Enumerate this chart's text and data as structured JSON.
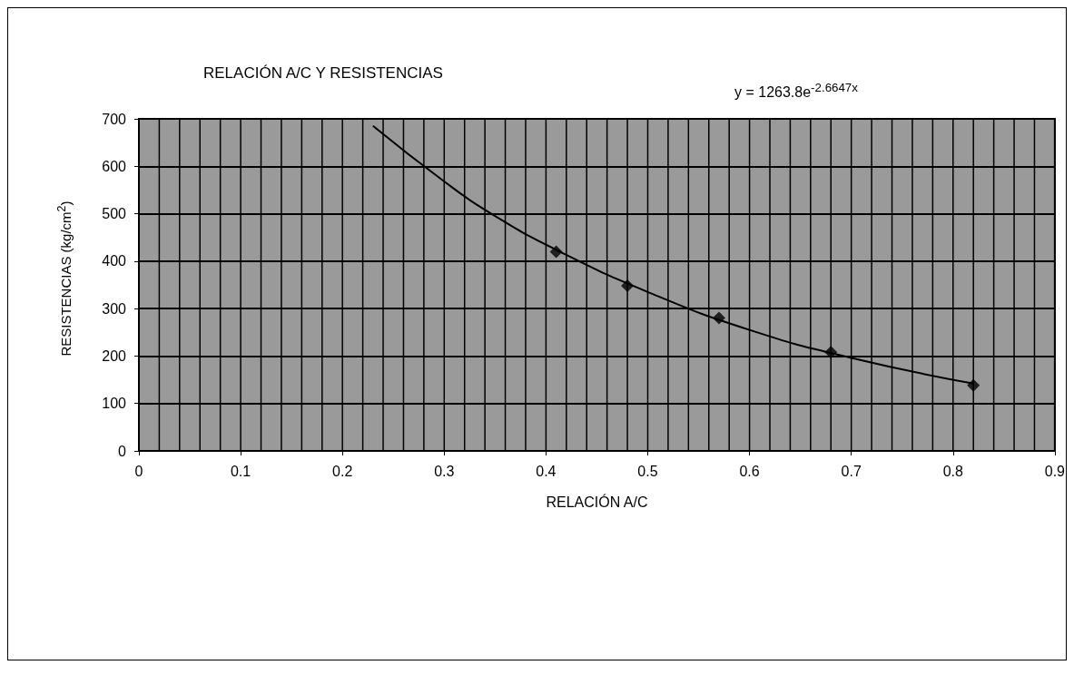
{
  "chart_data": {
    "type": "scatter",
    "title": "RELACIÓN A/C Y RESISTENCIAS",
    "xlabel": "RELACIÓN A/C",
    "ylabel": "RESISTENCIAS (kg/cm$^{2}$)",
    "annotations": [
      "y = 1263.8e$^{-2.6647x}$"
    ],
    "series": [
      {
        "color": "#000000",
        "marker": "diamond",
        "x": [
          0.41,
          0.48,
          0.57,
          0.68,
          0.82
        ],
        "values": [
          420,
          348,
          280,
          208,
          138
        ]
      },
      {
        "type": "line",
        "color": "#000000",
        "marker": "none",
        "x": [
          0.23,
          0.3,
          0.35,
          0.41,
          0.5,
          0.6,
          0.7,
          0.82
        ],
        "values": [
          685,
          568,
          495,
          424,
          335,
          255,
          196,
          142
        ]
      }
    ],
    "xlim": [
      0,
      0.9
    ],
    "xticks": [
      0,
      {
        "value": 0.02,
        "label": null
      },
      {
        "value": 0.04,
        "label": null
      },
      {
        "value": 0.06,
        "label": null
      },
      {
        "value": 0.08,
        "label": null
      },
      0.1,
      {
        "value": 0.12,
        "label": null
      },
      {
        "value": 0.14,
        "label": null
      },
      {
        "value": 0.16,
        "label": null
      },
      {
        "value": 0.18,
        "label": null
      },
      0.2,
      {
        "value": 0.22,
        "label": null
      },
      {
        "value": 0.24,
        "label": null
      },
      {
        "value": 0.26,
        "label": null
      },
      {
        "value": 0.28,
        "label": null
      },
      0.3,
      {
        "value": 0.32,
        "label": null
      },
      {
        "value": 0.34,
        "label": null
      },
      {
        "value": 0.36,
        "label": null
      },
      {
        "value": 0.38,
        "label": null
      },
      0.4,
      {
        "value": 0.42,
        "label": null
      },
      {
        "value": 0.44,
        "label": null
      },
      {
        "value": 0.46,
        "label": null
      },
      {
        "value": 0.48,
        "label": null
      },
      0.5,
      {
        "value": 0.52,
        "label": null
      },
      {
        "value": 0.54,
        "label": null
      },
      {
        "value": 0.56,
        "label": null
      },
      {
        "value": 0.58,
        "label": null
      },
      0.6,
      {
        "value": 0.62,
        "label": null
      },
      {
        "value": 0.64,
        "label": null
      },
      {
        "value": 0.66,
        "label": null
      },
      {
        "value": 0.68,
        "label": null
      },
      0.7,
      {
        "value": 0.72,
        "label": null
      },
      {
        "value": 0.74,
        "label": null
      },
      {
        "value": 0.76,
        "label": null
      },
      {
        "value": 0.78,
        "label": null
      },
      0.8,
      {
        "value": 0.82,
        "label": null
      },
      {
        "value": 0.84,
        "label": null
      },
      {
        "value": 0.86,
        "label": null
      },
      {
        "value": 0.88,
        "label": null
      },
      0.9
    ],
    "ylim": [
      0,
      700
    ],
    "yticks": [
      0,
      100,
      200,
      300,
      400,
      500,
      600,
      700
    ],
    "grid": true
  }
}
